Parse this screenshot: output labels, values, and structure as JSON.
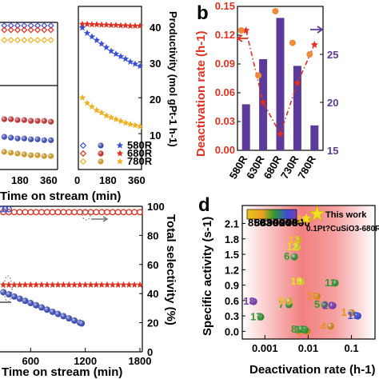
{
  "chart_data": [
    {
      "panel": "",
      "type": "scatter",
      "xlabel": "Time on stream (min)",
      "x_ticks": [
        "180",
        "360"
      ],
      "legend": [
        "580R",
        "680R",
        "780R"
      ],
      "xlim": [
        0,
        360
      ],
      "upper_series": [
        {
          "marker": "diamond",
          "color": "#3a4fd6",
          "x": [
            0,
            30,
            60,
            90,
            120,
            150,
            180,
            210,
            240,
            270,
            300,
            330,
            360
          ],
          "y": [
            0.95,
            0.95,
            0.95,
            0.95,
            0.95,
            0.95,
            0.95,
            0.95,
            0.95,
            0.95,
            0.95,
            0.95,
            0.95
          ]
        },
        {
          "marker": "diamond",
          "color": "#e03020",
          "x": [
            0,
            30,
            60,
            90,
            120,
            150,
            180,
            210,
            240,
            270,
            300,
            330,
            360
          ],
          "y": [
            0.88,
            0.88,
            0.88,
            0.88,
            0.88,
            0.88,
            0.88,
            0.88,
            0.88,
            0.88,
            0.88,
            0.88,
            0.88
          ]
        },
        {
          "marker": "diamond",
          "color": "#f0b020",
          "x": [
            0,
            30,
            60,
            90,
            120,
            150,
            180,
            210,
            240,
            270,
            300,
            330,
            360
          ],
          "y": [
            0.72,
            0.72,
            0.72,
            0.72,
            0.72,
            0.72,
            0.72,
            0.72,
            0.72,
            0.72,
            0.72,
            0.72,
            0.72
          ]
        }
      ],
      "lower_series": [
        {
          "marker": "ball",
          "color": "#e03030",
          "x": [
            0,
            30,
            60,
            90,
            120,
            150,
            180,
            210,
            240,
            270,
            300,
            330,
            360
          ],
          "y": [
            0.82,
            0.81,
            0.8,
            0.8,
            0.79,
            0.79,
            0.78,
            0.78,
            0.77,
            0.77,
            0.77,
            0.76,
            0.76
          ]
        },
        {
          "marker": "ball",
          "color": "#3a4fd6",
          "x": [
            0,
            30,
            60,
            90,
            120,
            150,
            180,
            210,
            240,
            270,
            300,
            330,
            360
          ],
          "y": [
            0.62,
            0.61,
            0.6,
            0.59,
            0.58,
            0.57,
            0.56,
            0.56,
            0.55,
            0.55,
            0.54,
            0.54,
            0.54
          ]
        },
        {
          "marker": "ball",
          "color": "#f0b020",
          "x": [
            0,
            30,
            60,
            90,
            120,
            150,
            180,
            210,
            240,
            270,
            300,
            330,
            360
          ],
          "y": [
            0.46,
            0.44,
            0.42,
            0.41,
            0.4,
            0.39,
            0.38,
            0.37,
            0.36,
            0.36,
            0.35,
            0.35,
            0.35
          ]
        }
      ]
    },
    {
      "panel": "",
      "type": "scatter",
      "xlabel": "",
      "ylabel": "Productivity (mol gPt-1 h-1)",
      "xlim": [
        0,
        360
      ],
      "ylim": [
        0,
        45
      ],
      "x_ticks": [
        0,
        180,
        360
      ],
      "y_ticks": [
        10,
        20,
        30,
        40
      ],
      "series": [
        {
          "name": "680R",
          "marker": "star",
          "color": "#e03020",
          "x": [
            0,
            30,
            60,
            90,
            120,
            150,
            180,
            210,
            240,
            270,
            300,
            330,
            360
          ],
          "y": [
            40.5,
            40.5,
            40.4,
            40.4,
            40.3,
            40.3,
            40.2,
            40.2,
            40.1,
            40.1,
            40.0,
            40.0,
            40.0
          ]
        },
        {
          "name": "580R",
          "marker": "star",
          "color": "#3a4fd6",
          "x": [
            0,
            30,
            60,
            90,
            120,
            150,
            180,
            210,
            240,
            270,
            300,
            330,
            360
          ],
          "y": [
            39.5,
            38.0,
            37.0,
            36.0,
            35.0,
            34.0,
            33.0,
            32.2,
            31.5,
            30.8,
            30.0,
            29.4,
            28.8
          ]
        },
        {
          "name": "780R",
          "marker": "star",
          "color": "#f0b020",
          "x": [
            0,
            30,
            60,
            90,
            120,
            150,
            180,
            210,
            240,
            270,
            300,
            330,
            360
          ],
          "y": [
            20.0,
            18.5,
            17.5,
            16.5,
            15.8,
            15.0,
            14.5,
            14.0,
            13.5,
            13.0,
            12.6,
            12.3,
            12.0
          ]
        }
      ],
      "legend": [
        "580R",
        "680R",
        "780R"
      ]
    },
    {
      "panel": "b",
      "type": "bar",
      "categories": [
        "580R",
        "630R",
        "680R",
        "730R",
        "780R"
      ],
      "ylabel": "Deactivation rate (h-1)",
      "ylim": [
        0,
        0.15
      ],
      "y_ticks": [
        0.0,
        0.03,
        0.06,
        0.09,
        0.12,
        0.15
      ],
      "y2lim": [
        15,
        30
      ],
      "y2_ticks": [
        15,
        20,
        25
      ],
      "bar_values": [
        0.048,
        0.095,
        0.138,
        0.088,
        0.026
      ],
      "line_values": [
        0.125,
        0.05,
        0.017,
        0.07,
        0.11
      ],
      "dot_values": [
        0.125,
        0.078,
        0.145,
        0.112,
        0.1
      ]
    },
    {
      "panel": "",
      "type": "scatter",
      "xlabel": "Time on stream (min)",
      "ylabel": "Total selectivity (%)",
      "xlim": [
        0,
        1800
      ],
      "ylim": [
        0,
        100
      ],
      "x_ticks": [
        600,
        1200,
        1800
      ],
      "y_ticks": [
        0,
        20,
        40,
        60,
        80,
        100
      ],
      "series": [
        {
          "marker": "circle",
          "color": "#e03020",
          "x": [
            0,
            60,
            120,
            180,
            240,
            300,
            360,
            420,
            480,
            540,
            600,
            660,
            720,
            780,
            840,
            900,
            960,
            1020,
            1080,
            1140,
            1200,
            1260,
            1320,
            1380,
            1440,
            1500,
            1560,
            1620,
            1680,
            1740,
            1800
          ],
          "y": [
            96,
            96,
            96,
            96,
            96,
            96,
            96,
            96,
            96,
            96,
            96,
            96,
            96,
            96,
            96,
            96,
            96,
            96,
            96,
            96,
            96,
            96,
            96,
            96,
            96,
            96,
            96,
            96,
            96,
            96,
            96
          ]
        },
        {
          "marker": "circle",
          "color": "#3a4fd6",
          "x": [
            0,
            40,
            80,
            120,
            160,
            200,
            240,
            280,
            320,
            360
          ],
          "y": [
            98,
            98,
            98,
            98,
            98,
            98,
            98,
            98,
            98,
            98
          ]
        },
        {
          "marker": "star",
          "color": "#e03020",
          "x": [
            0,
            60,
            120,
            180,
            240,
            300,
            360,
            420,
            480,
            540,
            600,
            660,
            720,
            780,
            840,
            900,
            960,
            1020,
            1080,
            1140,
            1200,
            1260,
            1320,
            1380,
            1440,
            1500,
            1560,
            1620,
            1680,
            1740,
            1800
          ],
          "y": [
            46,
            46,
            46,
            46,
            46,
            46,
            46,
            46,
            46,
            46,
            46,
            46,
            46,
            46,
            46,
            46,
            46,
            46,
            46,
            46,
            46,
            46,
            46,
            46,
            46,
            46,
            46,
            46,
            46,
            46,
            46
          ]
        },
        {
          "marker": "ball",
          "color": "#3a4fd6",
          "x": [
            300,
            360,
            420,
            480,
            540,
            600,
            660,
            720,
            780,
            840,
            900,
            960,
            1020,
            1080,
            1140,
            1160
          ],
          "y": [
            41,
            39.5,
            38,
            36.5,
            35,
            33.5,
            32,
            30.5,
            29,
            27.5,
            26,
            24.5,
            23,
            21.5,
            20,
            19.5
          ]
        }
      ]
    },
    {
      "panel": "d",
      "type": "scatter",
      "xlabel": "Deactivation rate (h-1)",
      "ylabel": "Specific activity (s-1)",
      "xscale": "log",
      "xlim": [
        0.0003,
        0.35
      ],
      "ylim": [
        -0.15,
        2.45
      ],
      "x_ticks": [
        "0.001",
        "0.01",
        "0.1"
      ],
      "y_ticks": [
        0.0,
        0.3,
        0.6,
        0.9,
        1.2,
        1.5,
        1.8,
        2.1
      ],
      "legend": "This work",
      "legend_sub": "0.1Pt?CuSiO3-680R",
      "colorbar_ticks": [
        "850",
        "863",
        "880",
        "900",
        "920",
        "940",
        "960",
        "990"
      ],
      "points": [
        {
          "label": "1",
          "x": 0.1,
          "y": 0.36,
          "color": "#e8901c"
        },
        {
          "label": "2",
          "x": 0.0095,
          "y": 0.0,
          "color": "#e8901c"
        },
        {
          "label": "4",
          "x": 0.033,
          "y": 0.1,
          "color": "#e8901c"
        },
        {
          "label": "5",
          "x": 0.024,
          "y": 0.52,
          "color": "#2f9a2f"
        },
        {
          "label": "6",
          "x": 0.0048,
          "y": 1.45,
          "color": "#2f9a2f"
        },
        {
          "label": "7",
          "x": 0.0036,
          "y": 0.52,
          "color": "#2f9a2f"
        },
        {
          "label": "8",
          "x": 0.007,
          "y": 0.04,
          "color": "#2f9a2f"
        },
        {
          "label": "9",
          "x": 0.0036,
          "y": 0.59,
          "color": "#f0c020"
        },
        {
          "label": "10",
          "x": 0.0068,
          "y": 0.97,
          "color": "#e8e020"
        },
        {
          "label": "11",
          "x": 0.042,
          "y": 0.94,
          "color": "#2f9a2f"
        },
        {
          "label": "12",
          "x": 0.0055,
          "y": 1.64,
          "color": "#e8e020"
        },
        {
          "label": "13",
          "x": 0.006,
          "y": 1.78,
          "color": "#f0c020"
        },
        {
          "label": "14",
          "x": 0.0095,
          "y": 2.18,
          "color": "#f0c020"
        },
        {
          "label": "15",
          "x": 0.0085,
          "y": 0.03,
          "color": "#2f9a2f"
        },
        {
          "label": "16",
          "x": 0.016,
          "y": 0.68,
          "color": "#e8901c"
        },
        {
          "label": "17",
          "x": 0.0008,
          "y": 0.28,
          "color": "#2f9a2f"
        },
        {
          "label": "18",
          "x": 0.00055,
          "y": 0.58,
          "color": "#7a3fb0"
        },
        {
          "label": "19",
          "x": 0.14,
          "y": 0.3,
          "color": "#3a4fd6"
        },
        {
          "label": "20",
          "x": 0.037,
          "y": 0.5,
          "color": "#7a3fb0"
        }
      ],
      "this_work": {
        "x": 0.009,
        "y": 2.2
      }
    }
  ]
}
